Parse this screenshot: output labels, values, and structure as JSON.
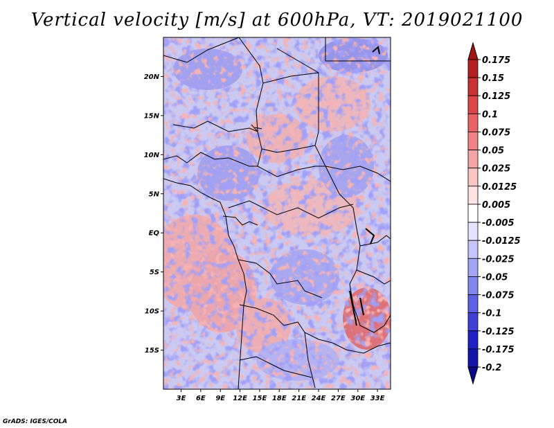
{
  "title": "Vertical velocity [m/s] at 600hPa, VT: 2019021100",
  "credit": "GrADS: IGES/COLA",
  "chart_data": {
    "type": "heatmap",
    "title": "Vertical velocity [m/s] at 600hPa, VT: 2019021100",
    "variable": "Vertical velocity",
    "units": "m/s",
    "level": "600hPa",
    "valid_time": "2019021100",
    "x_ticks": [
      "3E",
      "6E",
      "9E",
      "12E",
      "15E",
      "18E",
      "21E",
      "24E",
      "27E",
      "30E",
      "33E"
    ],
    "x_tick_values": [
      3,
      6,
      9,
      12,
      15,
      18,
      21,
      24,
      27,
      30,
      33
    ],
    "y_ticks": [
      "20N",
      "15N",
      "10N",
      "5N",
      "EQ",
      "5S",
      "10S",
      "15S"
    ],
    "y_tick_values": [
      20,
      15,
      10,
      5,
      0,
      -5,
      -10,
      -15
    ],
    "xlim": [
      0.3,
      35
    ],
    "ylim": [
      -20,
      25
    ],
    "colorbar": {
      "labels": [
        "0.175",
        "0.15",
        "0.125",
        "0.1",
        "0.075",
        "0.05",
        "0.025",
        "0.0125",
        "0.005",
        "-0.005",
        "-0.0125",
        "-0.025",
        "-0.05",
        "-0.075",
        "-0.1",
        "-0.125",
        "-0.175",
        "-0.2"
      ],
      "colors": [
        "#a01414",
        "#b42020",
        "#c83232",
        "#dc4646",
        "#e86464",
        "#f08484",
        "#f4a4a4",
        "#f8c4c4",
        "#fce4e4",
        "#ffffff",
        "#e4e4fc",
        "#c4c4f8",
        "#a4a4f4",
        "#8484ee",
        "#6060e4",
        "#4040d8",
        "#2020c4",
        "#1414a8",
        "#0a0a8c"
      ]
    }
  }
}
